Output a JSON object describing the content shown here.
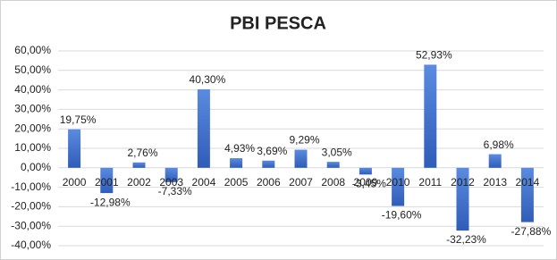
{
  "chart_data": {
    "type": "bar",
    "title": "PBI PESCA",
    "categories": [
      "2000",
      "2001",
      "2002",
      "2003",
      "2004",
      "2005",
      "2006",
      "2007",
      "2008",
      "2009",
      "2010",
      "2011",
      "2012",
      "2013",
      "2014"
    ],
    "values": [
      19.75,
      -12.98,
      2.76,
      -7.33,
      40.3,
      4.93,
      3.69,
      9.29,
      3.05,
      -3.45,
      -19.6,
      52.93,
      -32.23,
      6.98,
      -27.88
    ],
    "value_labels": [
      "19,75%",
      "-12,98%",
      "2,76%",
      "-7,33%",
      "40,30%",
      "4,93%",
      "3,69%",
      "9,29%",
      "3,05%",
      "-3,45%",
      "-19,60%",
      "52,93%",
      "-32,23%",
      "6,98%",
      "-27,88%"
    ],
    "color": "#4472c4",
    "ylim": [
      -40,
      60
    ],
    "yticks": [
      {
        "value": -40,
        "label": "-40,00%"
      },
      {
        "value": -30,
        "label": "-30,00%"
      },
      {
        "value": -20,
        "label": "-20,00%"
      },
      {
        "value": -10,
        "label": "-10,00%"
      },
      {
        "value": 0,
        "label": "0,00%"
      },
      {
        "value": 10,
        "label": "10,00%"
      },
      {
        "value": 20,
        "label": "20,00%"
      },
      {
        "value": 30,
        "label": "30,00%"
      },
      {
        "value": 40,
        "label": "40,00%"
      },
      {
        "value": 50,
        "label": "50,00%"
      },
      {
        "value": 60,
        "label": "60,00%"
      }
    ],
    "grid": true
  }
}
